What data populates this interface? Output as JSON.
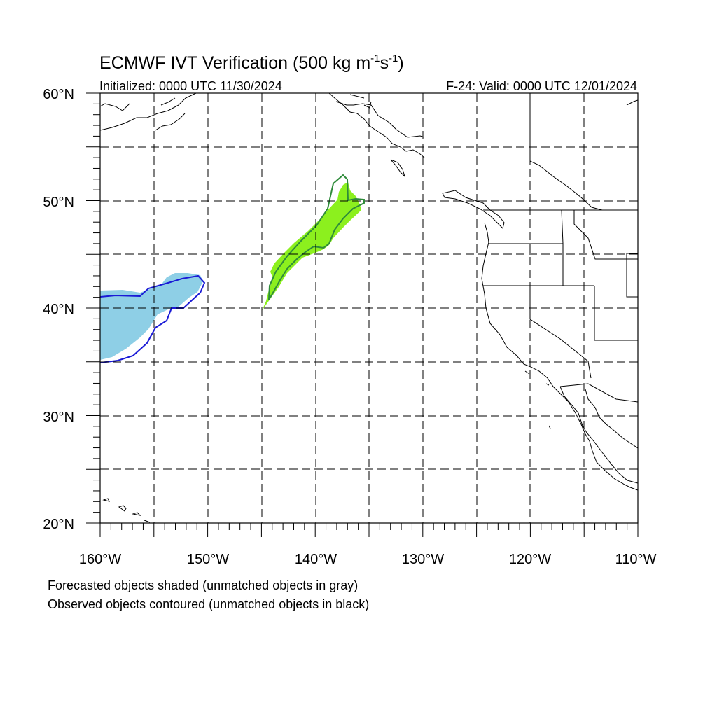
{
  "title": {
    "main": "ECMWF IVT Verification (500 kg m",
    "sup1": "-1",
    "mid": "s",
    "sup2": "-1",
    "close": ")"
  },
  "initialized": "Initialized: 0000 UTC 11/30/2024",
  "valid": "F-24: Valid: 0000 UTC 12/01/2024",
  "lat_labels": [
    "60°N",
    "50°N",
    "40°N",
    "30°N",
    "20°N"
  ],
  "lon_labels": [
    "160°W",
    "150°W",
    "140°W",
    "130°W",
    "120°W",
    "110°W"
  ],
  "footnote_forecast": "Forecasted objects shaded (unmatched objects in gray)",
  "footnote_observed": "Observed objects contoured (unmatched objects in black)",
  "colors": {
    "object_blue_fill": "#8ecfe6",
    "object_blue_contour": "#1a1ad6",
    "object_green_fill": "#8cf01e",
    "object_green_contour": "#2e8b3a"
  },
  "map_extent": {
    "lon": [
      -160,
      -110
    ],
    "lat": [
      20,
      60
    ]
  }
}
